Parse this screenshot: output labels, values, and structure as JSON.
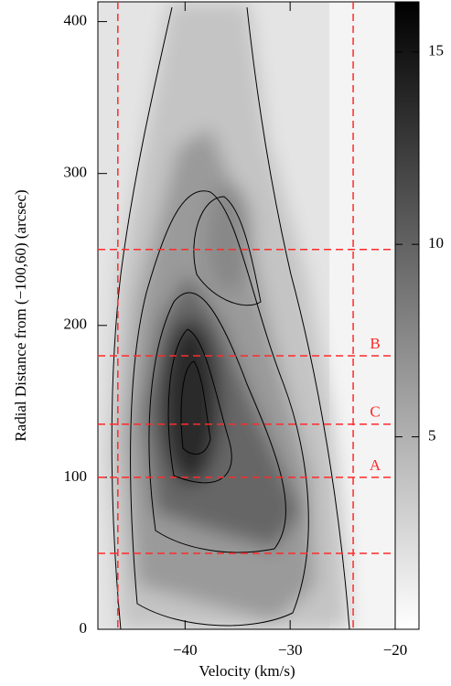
{
  "chart_data": {
    "type": "pv-diagram",
    "xlabel": "Velocity (km/s)",
    "ylabel": "Radial Distance from (−100,60) (arcsec)",
    "xlim": [
      -48.3,
      -20
    ],
    "ylim": [
      0,
      413
    ],
    "xticks": [
      {
        "value": -40,
        "label": "−40"
      },
      {
        "value": -30,
        "label": "−30"
      },
      {
        "value": -20,
        "label": "−20"
      }
    ],
    "yticks": [
      0,
      100,
      200,
      300,
      400
    ],
    "vlines": [
      -46.4,
      -24
    ],
    "hlines": [
      250,
      180,
      135,
      100,
      50
    ],
    "hline_labels": [
      null,
      "B",
      "C",
      "A",
      null
    ],
    "line_color": "#ff2a2a",
    "colorbar": {
      "lim": [
        0,
        16.3
      ],
      "ticks": [
        5,
        10,
        15
      ]
    }
  }
}
